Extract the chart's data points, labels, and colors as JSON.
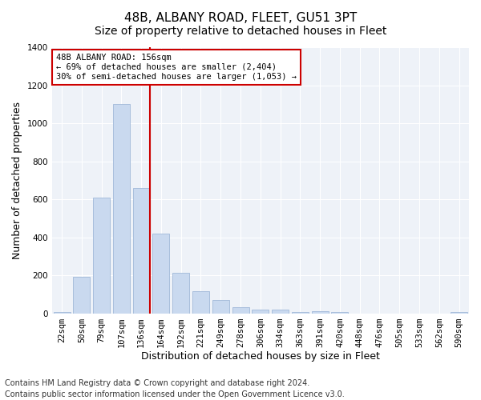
{
  "title": "48B, ALBANY ROAD, FLEET, GU51 3PT",
  "subtitle": "Size of property relative to detached houses in Fleet",
  "xlabel": "Distribution of detached houses by size in Fleet",
  "ylabel": "Number of detached properties",
  "categories": [
    "22sqm",
    "50sqm",
    "79sqm",
    "107sqm",
    "136sqm",
    "164sqm",
    "192sqm",
    "221sqm",
    "249sqm",
    "278sqm",
    "306sqm",
    "334sqm",
    "363sqm",
    "391sqm",
    "420sqm",
    "448sqm",
    "476sqm",
    "505sqm",
    "533sqm",
    "562sqm",
    "590sqm"
  ],
  "values": [
    5,
    190,
    610,
    1100,
    660,
    420,
    215,
    115,
    70,
    30,
    20,
    20,
    5,
    10,
    5,
    0,
    0,
    0,
    0,
    0,
    5
  ],
  "bar_color": "#c9d9ef",
  "bar_edge_color": "#a0b8d8",
  "vline_color": "#cc0000",
  "annotation_text": "48B ALBANY ROAD: 156sqm\n← 69% of detached houses are smaller (2,404)\n30% of semi-detached houses are larger (1,053) →",
  "annotation_box_color": "#ffffff",
  "annotation_box_edge": "#cc0000",
  "ylim": [
    0,
    1400
  ],
  "yticks": [
    0,
    200,
    400,
    600,
    800,
    1000,
    1200,
    1400
  ],
  "fig_bg_color": "#ffffff",
  "plot_bg_color": "#eef2f8",
  "footer": "Contains HM Land Registry data © Crown copyright and database right 2024.\nContains public sector information licensed under the Open Government Licence v3.0.",
  "title_fontsize": 11,
  "subtitle_fontsize": 10,
  "xlabel_fontsize": 9,
  "ylabel_fontsize": 9,
  "tick_fontsize": 7.5,
  "footer_fontsize": 7
}
